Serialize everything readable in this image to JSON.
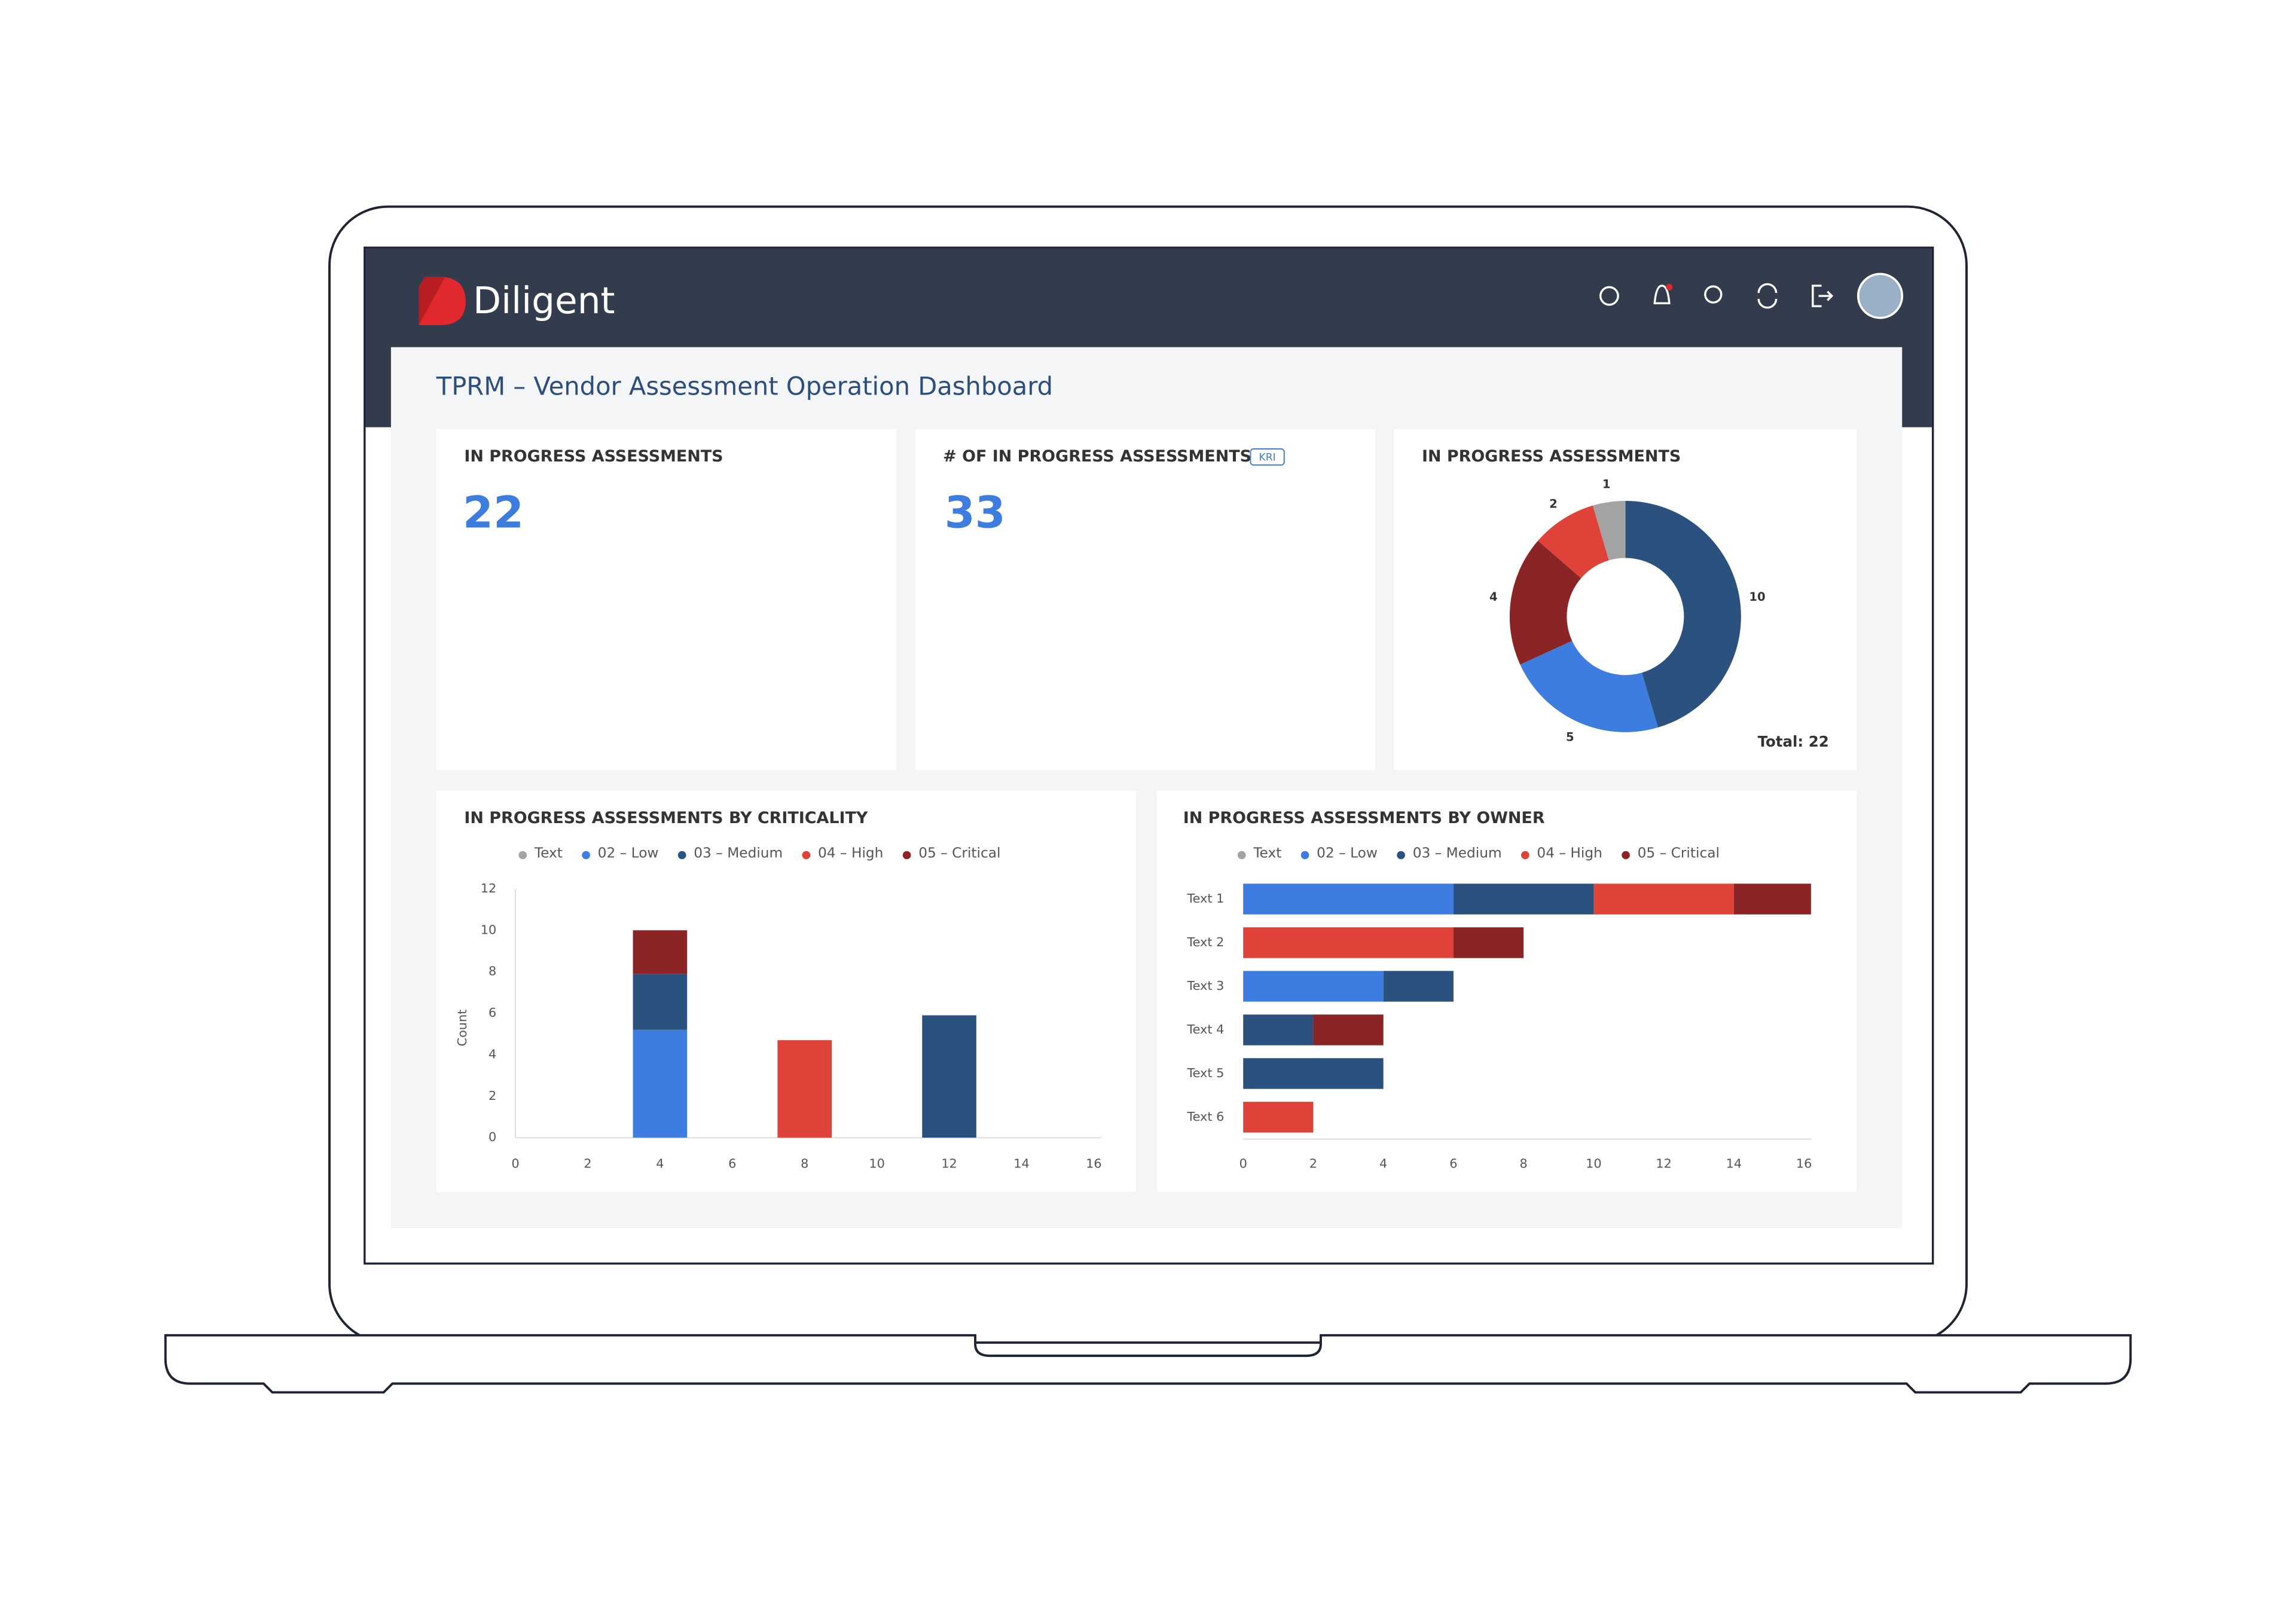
{
  "header": {
    "brand": "Diligent"
  },
  "dashboard_title": "TPRM – Vendor Assessment Operation Dashboard",
  "kpis": [
    {
      "title": "IN PROGRESS ASSESSMENTS",
      "value": 22
    },
    {
      "title": "# OF IN PROGRESS ASSESSMENTS",
      "badge": "KRI",
      "value": 33
    }
  ],
  "chart_data": [
    {
      "type": "pie",
      "donut": true,
      "title": "IN PROGRESS ASSESSMENTS",
      "values": [
        10,
        5,
        4,
        2,
        1
      ],
      "colors": [
        "#2b527f",
        "#3e7de0",
        "#8b2525",
        "#de4239",
        "#a3a3a3"
      ],
      "annotation": "Total: 22"
    },
    {
      "type": "bar",
      "orientation": "vertical",
      "stacked": true,
      "title": "IN PROGRESS ASSESSMENTS BY CRITICALITY",
      "x": [
        4,
        8,
        12
      ],
      "xlim": [
        0,
        16
      ],
      "xticks": [
        0,
        2,
        4,
        6,
        8,
        10,
        12,
        14,
        16
      ],
      "ylim": [
        0,
        12
      ],
      "yticks": [
        0,
        2,
        4,
        6,
        8,
        10,
        12
      ],
      "y_label": "Count",
      "grid": false,
      "series": [
        {
          "name": "Text",
          "color": "#a3a3a3",
          "values": [
            null,
            null,
            null
          ]
        },
        {
          "name": "02 – Low",
          "color": "#3e7de0",
          "values": [
            5.2,
            null,
            null
          ]
        },
        {
          "name": "03 – Medium",
          "color": "#2b527f",
          "values": [
            2.7,
            null,
            5.9
          ]
        },
        {
          "name": "04 – High",
          "color": "#de4239",
          "values": [
            null,
            4.7,
            null
          ]
        },
        {
          "name": "05 – Critical",
          "color": "#8b2525",
          "values": [
            2.1,
            null,
            null
          ]
        }
      ]
    },
    {
      "type": "bar",
      "orientation": "horizontal",
      "stacked": true,
      "title": "IN PROGRESS ASSESSMENTS BY OWNER",
      "categories": [
        "Text 1",
        "Text 2",
        "Text 3",
        "Text 4",
        "Text 5",
        "Text 6"
      ],
      "xlim": [
        0,
        16
      ],
      "xticks": [
        0,
        2,
        4,
        6,
        8,
        10,
        12,
        14,
        16
      ],
      "grid": false,
      "series": [
        {
          "name": "Text",
          "color": "#a3a3a3",
          "values": [
            null,
            null,
            null,
            null,
            null,
            null
          ]
        },
        {
          "name": "02 – Low",
          "color": "#3e7de0",
          "values": [
            6,
            null,
            4,
            null,
            null,
            null
          ]
        },
        {
          "name": "03 – Medium",
          "color": "#2b527f",
          "values": [
            4,
            null,
            2,
            2,
            4,
            null
          ]
        },
        {
          "name": "04 – High",
          "color": "#de4239",
          "values": [
            4,
            6,
            null,
            null,
            null,
            2
          ]
        },
        {
          "name": "05 – Critical",
          "color": "#8b2525",
          "values": [
            2.2,
            2,
            null,
            2,
            null,
            null
          ]
        }
      ]
    }
  ]
}
